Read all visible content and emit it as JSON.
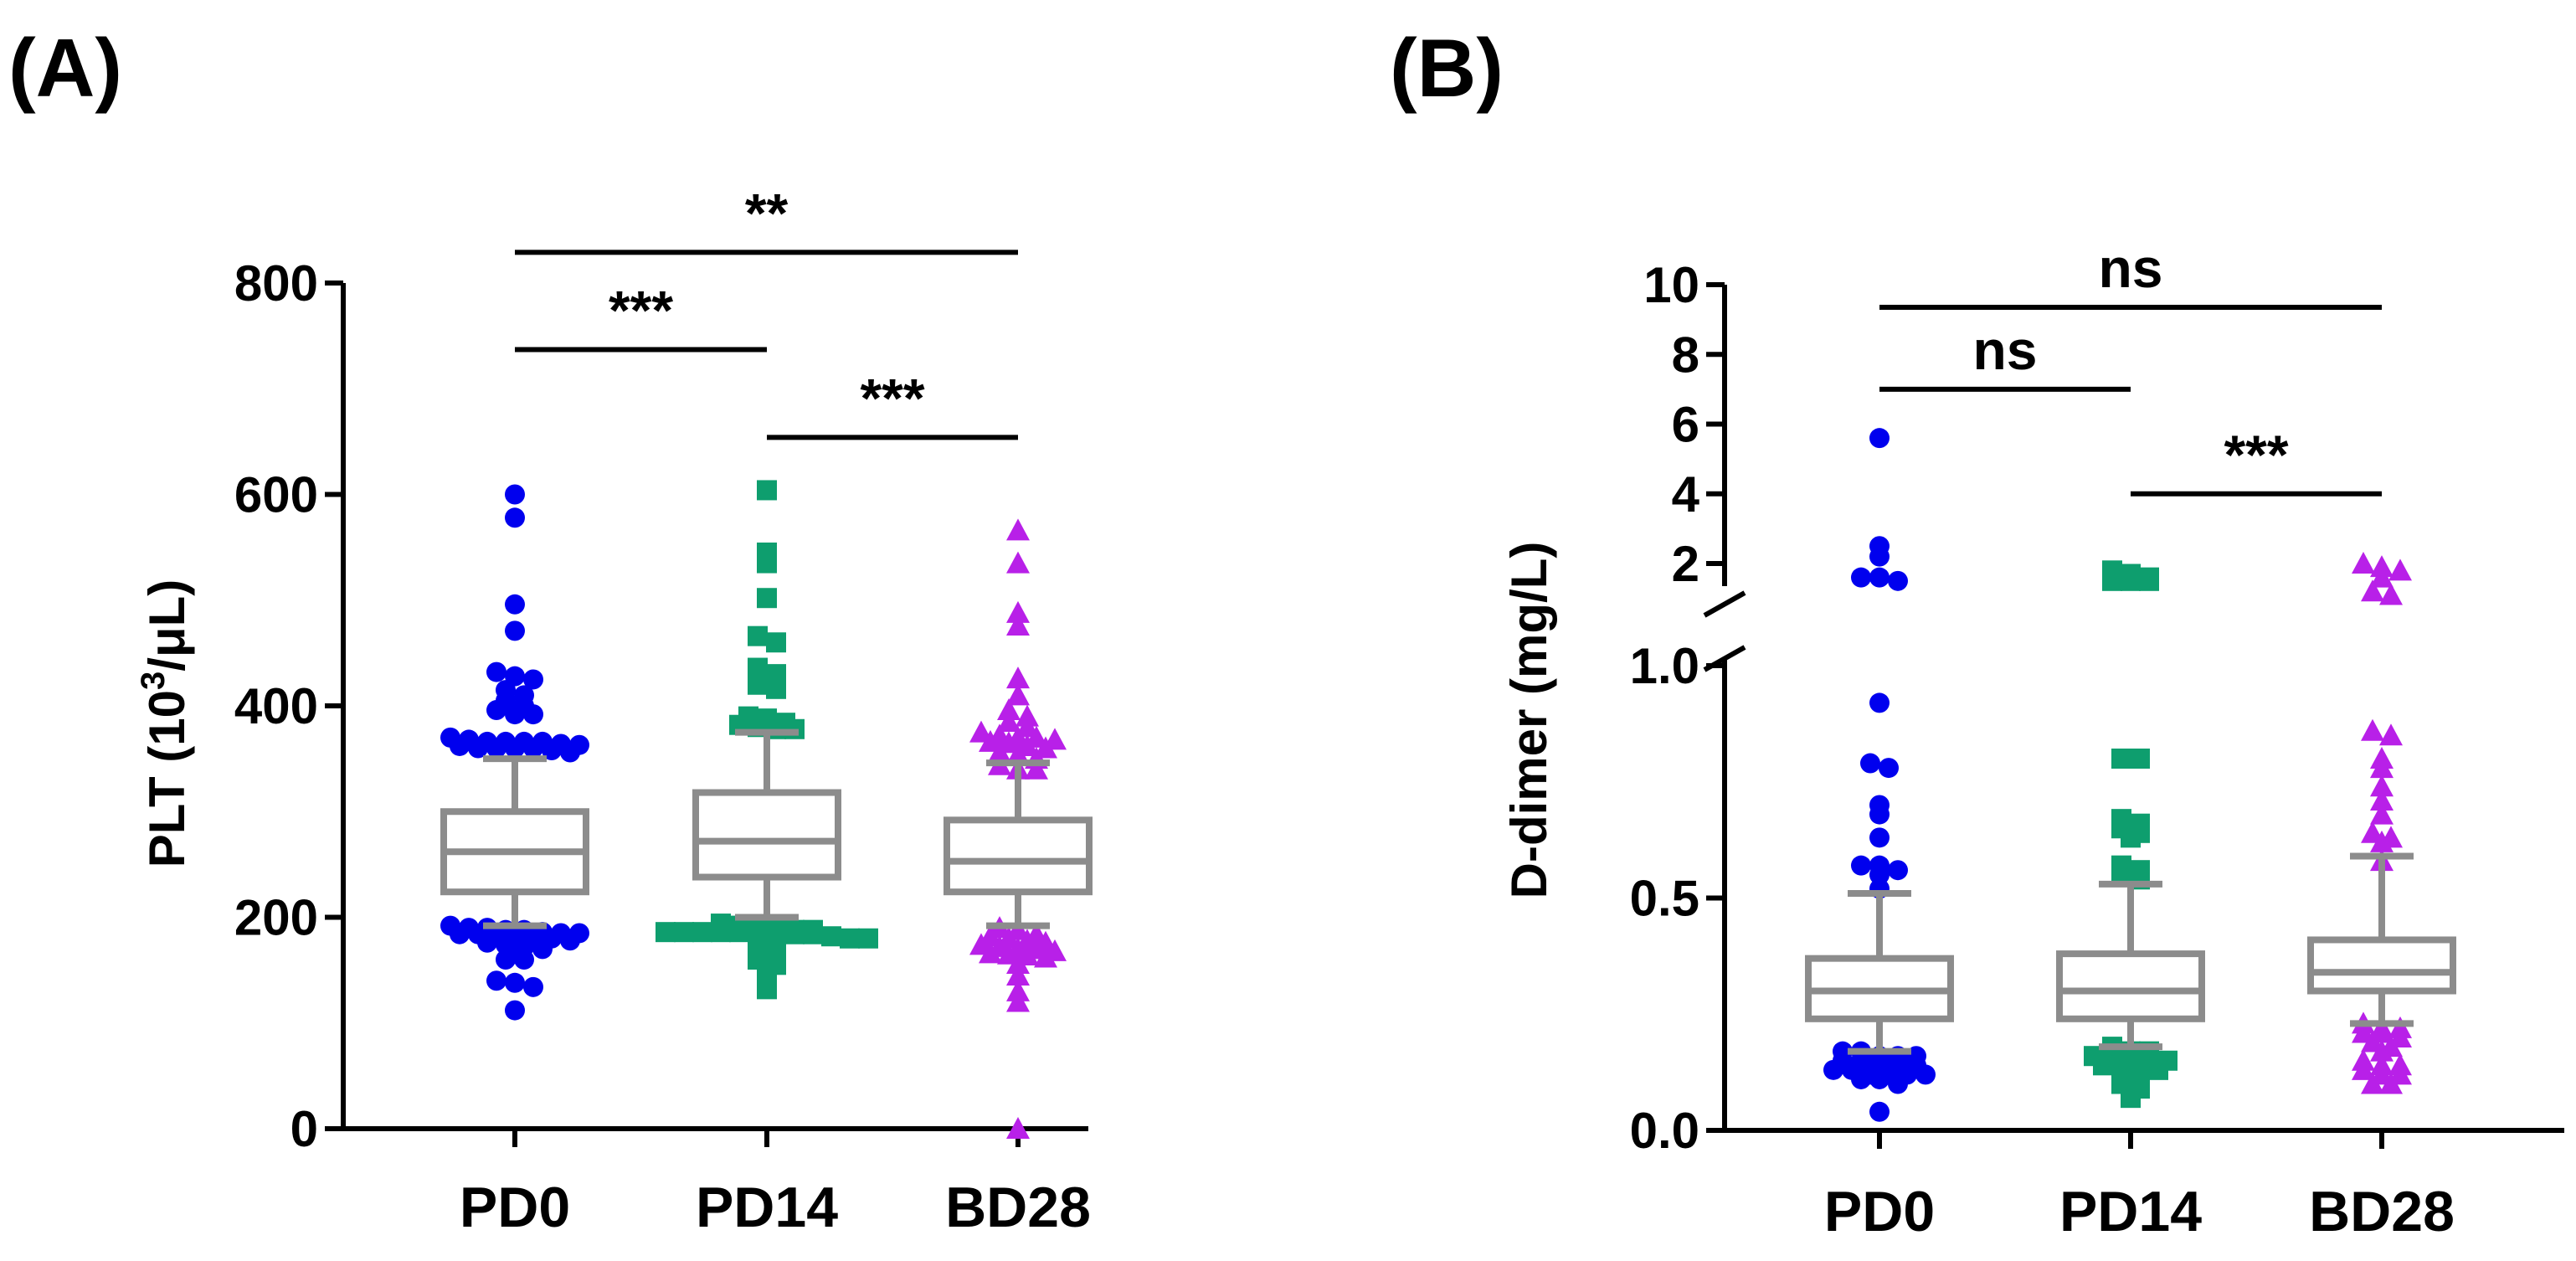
{
  "chart_data": [
    {
      "panel_label": "(A)",
      "type": "box-scatter",
      "ylabel": "PLT (10³/μL)",
      "ylabel_main": "PLT (10",
      "ylabel_sup": "3",
      "ylabel_tail": "/μL)",
      "ylim": [
        0,
        800
      ],
      "yticks": [
        "0",
        "200",
        "400",
        "600",
        "800"
      ],
      "categories": [
        "PD0",
        "PD14",
        "BD28"
      ],
      "box_color": "#8c8c8c",
      "series": [
        {
          "name": "PD0",
          "color": "#0000ee",
          "marker": "circle",
          "box": {
            "whisker_low": 192,
            "q1": 224,
            "median": 262,
            "q3": 300,
            "whisker_high": 350
          },
          "points": [
            600,
            578,
            496,
            471,
            432,
            428,
            425,
            415,
            410,
            405,
            400,
            396,
            392,
            392,
            370,
            368,
            366,
            366,
            366,
            366,
            364,
            363,
            362,
            360,
            360,
            360,
            360,
            358,
            356,
            192,
            190,
            190,
            188,
            188,
            186,
            185,
            185,
            184,
            184,
            182,
            182,
            180,
            180,
            178,
            176,
            174,
            172,
            170,
            168,
            160,
            160,
            140,
            138,
            134,
            112
          ]
        },
        {
          "name": "PD14",
          "color": "#0e9e6e",
          "marker": "square",
          "box": {
            "whisker_low": 200,
            "q1": 238,
            "median": 272,
            "q3": 318,
            "whisker_high": 375
          },
          "points": [
            604,
            545,
            535,
            502,
            466,
            460,
            436,
            430,
            428,
            425,
            420,
            416,
            390,
            388,
            384,
            382,
            380,
            378,
            378,
            194,
            192,
            190,
            190,
            188,
            188,
            186,
            186,
            186,
            186,
            186,
            186,
            184,
            184,
            184,
            182,
            180,
            180,
            178,
            176,
            168,
            165,
            160,
            155,
            150,
            140,
            132
          ]
        },
        {
          "name": "BD28",
          "color": "#b820e8",
          "marker": "triangle",
          "box": {
            "whisker_low": 192,
            "q1": 224,
            "median": 253,
            "q3": 292,
            "whisker_high": 346
          },
          "points": [
            566,
            535,
            488,
            476,
            426,
            410,
            396,
            390,
            385,
            380,
            375,
            372,
            370,
            370,
            368,
            366,
            365,
            362,
            360,
            356,
            354,
            350,
            344,
            340,
            340,
            190,
            188,
            184,
            182,
            180,
            178,
            176,
            174,
            172,
            170,
            170,
            168,
            166,
            165,
            164,
            162,
            156,
            145,
            130,
            120,
            0
          ]
        }
      ],
      "comparisons": [
        {
          "from": "PD0",
          "to": "BD28",
          "label": "**",
          "y": 829
        },
        {
          "from": "PD0",
          "to": "PD14",
          "label": "***",
          "y": 737
        },
        {
          "from": "PD14",
          "to": "BD28",
          "label": "***",
          "y": 654
        }
      ]
    },
    {
      "panel_label": "(B)",
      "type": "box-scatter",
      "ylabel": "D-dimer (mg/L)",
      "y_axis_break": true,
      "lower_segment": {
        "ylim": [
          0,
          1.0
        ],
        "yticks": [
          "0.0",
          "0.5",
          "1.0"
        ]
      },
      "upper_segment": {
        "ylim": [
          1,
          10
        ],
        "yticks": [
          "2",
          "4",
          "6",
          "8",
          "10"
        ]
      },
      "categories": [
        "PD0",
        "PD14",
        "BD28"
      ],
      "box_color": "#8c8c8c",
      "series": [
        {
          "name": "PD0",
          "color": "#0000ee",
          "marker": "circle",
          "box": {
            "whisker_low": 0.17,
            "q1": 0.24,
            "median": 0.3,
            "q3": 0.37,
            "whisker_high": 0.51
          },
          "points": [
            5.6,
            2.5,
            2.2,
            1.6,
            1.6,
            1.5,
            0.92,
            0.79,
            0.78,
            0.7,
            0.68,
            0.63,
            0.57,
            0.57,
            0.56,
            0.55,
            0.52,
            0.17,
            0.17,
            0.16,
            0.16,
            0.16,
            0.15,
            0.15,
            0.15,
            0.15,
            0.14,
            0.13,
            0.13,
            0.12,
            0.12,
            0.12,
            0.12,
            0.11,
            0.11,
            0.1,
            0.04
          ]
        },
        {
          "name": "PD14",
          "color": "#0e9e6e",
          "marker": "square",
          "box": {
            "whisker_low": 0.18,
            "q1": 0.24,
            "median": 0.3,
            "q3": 0.38,
            "whisker_high": 0.53
          },
          "points": [
            1.8,
            1.7,
            1.6,
            1.5,
            1.5,
            1.5,
            0.8,
            0.8,
            0.67,
            0.66,
            0.65,
            0.64,
            0.63,
            0.57,
            0.56,
            0.55,
            0.54,
            0.18,
            0.17,
            0.17,
            0.16,
            0.16,
            0.16,
            0.15,
            0.15,
            0.14,
            0.14,
            0.14,
            0.13,
            0.12,
            0.11,
            0.1,
            0.09,
            0.07
          ]
        },
        {
          "name": "BD28",
          "color": "#b820e8",
          "marker": "triangle",
          "box": {
            "whisker_low": 0.23,
            "q1": 0.3,
            "median": 0.34,
            "q3": 0.41,
            "whisker_high": 0.59
          },
          "points": [
            2.0,
            1.9,
            1.8,
            1.6,
            1.2,
            1.1,
            0.86,
            0.85,
            0.8,
            0.78,
            0.74,
            0.71,
            0.68,
            0.64,
            0.63,
            0.62,
            0.58,
            0.23,
            0.22,
            0.22,
            0.21,
            0.21,
            0.2,
            0.19,
            0.18,
            0.17,
            0.15,
            0.14,
            0.14,
            0.13,
            0.12,
            0.12,
            0.1,
            0.1
          ]
        }
      ],
      "comparisons": [
        {
          "from": "PD0",
          "to": "BD28",
          "label": "ns",
          "y": 10.2
        },
        {
          "from": "PD0",
          "to": "PD14",
          "label": "ns",
          "y": 7.0
        },
        {
          "from": "PD14",
          "to": "BD28",
          "label": "***",
          "y": 4.0
        }
      ]
    }
  ]
}
